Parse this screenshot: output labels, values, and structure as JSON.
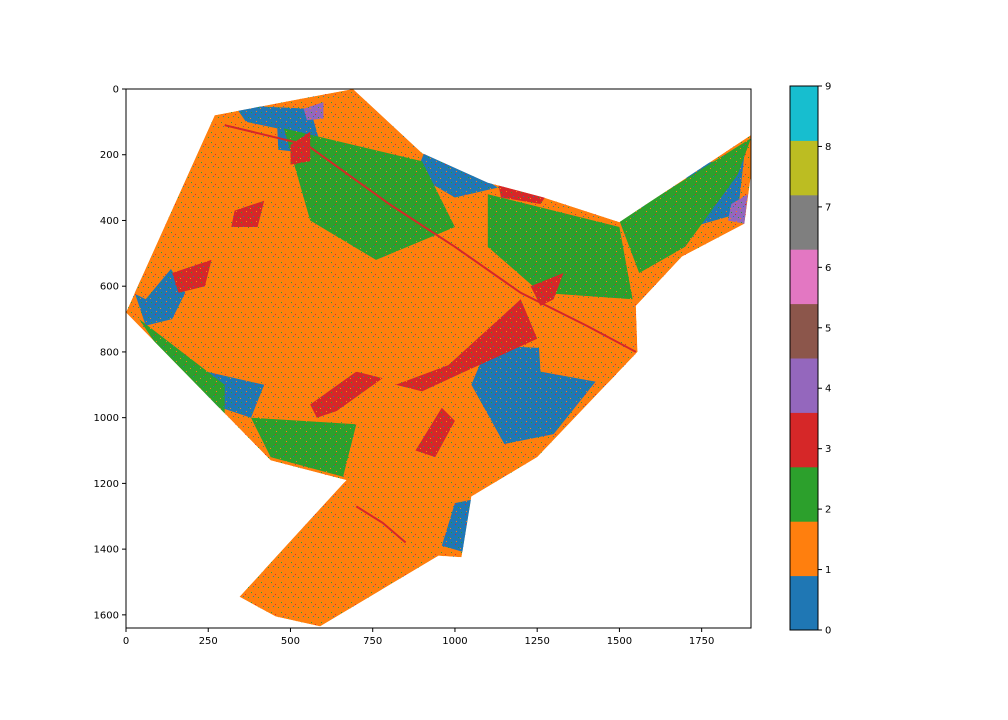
{
  "chart_data": [
    {
      "type": "heatmap",
      "title": "",
      "xlabel": "",
      "ylabel": "",
      "xlim": [
        0,
        1900
      ],
      "ylim": [
        1640,
        0
      ],
      "x_ticks": [
        "0",
        "250",
        "500",
        "750",
        "1000",
        "1250",
        "1500",
        "1750"
      ],
      "y_ticks": [
        "0",
        "200",
        "400",
        "600",
        "800",
        "1000",
        "1200",
        "1400",
        "1600"
      ],
      "x_tick_values": [
        0,
        250,
        500,
        750,
        1000,
        1250,
        1500,
        1750
      ],
      "y_tick_values": [
        0,
        200,
        400,
        600,
        800,
        1000,
        1200,
        1400,
        1600
      ],
      "grid": false,
      "description_region_boundary": [
        [
          690,
          0
        ],
        [
          900,
          195
        ],
        [
          1100,
          285
        ],
        [
          1270,
          330
        ],
        [
          1500,
          405
        ],
        [
          1900,
          140
        ],
        [
          1900,
          260
        ],
        [
          1880,
          410
        ],
        [
          1690,
          510
        ],
        [
          1550,
          660
        ],
        [
          1555,
          800
        ],
        [
          1250,
          1120
        ],
        [
          1050,
          1240
        ],
        [
          1020,
          1425
        ],
        [
          950,
          1420
        ],
        [
          590,
          1635
        ],
        [
          455,
          1605
        ],
        [
          345,
          1545
        ],
        [
          670,
          1190
        ],
        [
          440,
          1130
        ],
        [
          0,
          680
        ],
        [
          270,
          80
        ],
        [
          530,
          30
        ]
      ],
      "class_areas": [
        {
          "class": 0,
          "label": "0",
          "color": "#1f77b4",
          "regions": [
            [
              [
                20,
                600
              ],
              [
                120,
                520
              ],
              [
                180,
                620
              ],
              [
                140,
                700
              ],
              [
                60,
                720
              ]
            ],
            [
              [
                330,
                50
              ],
              [
                560,
                60
              ],
              [
                600,
                200
              ],
              [
                420,
                180
              ]
            ],
            [
              [
                920,
                160
              ],
              [
                1130,
                300
              ],
              [
                1000,
                330
              ],
              [
                880,
                260
              ]
            ],
            [
              [
                1100,
                780
              ],
              [
                1500,
                800
              ],
              [
                1300,
                1050
              ],
              [
                1150,
                1080
              ],
              [
                1050,
                900
              ]
            ],
            [
              [
                1000,
                1260
              ],
              [
                1050,
                1250
              ],
              [
                1030,
                1410
              ],
              [
                960,
                1390
              ]
            ],
            [
              [
                1700,
                240
              ],
              [
                1880,
                200
              ],
              [
                1860,
                380
              ],
              [
                1720,
                420
              ]
            ],
            [
              [
                200,
                850
              ],
              [
                420,
                900
              ],
              [
                380,
                1000
              ],
              [
                260,
                960
              ]
            ]
          ]
        },
        {
          "class": 1,
          "label": "1",
          "color": "#ff7f0e",
          "regions": [
            [
              [
                270,
                80
              ],
              [
                460,
                120
              ],
              [
                480,
                560
              ],
              [
                300,
                600
              ],
              [
                160,
                520
              ],
              [
                60,
                640
              ],
              [
                20,
                620
              ]
            ],
            [
              [
                300,
                640
              ],
              [
                700,
                560
              ],
              [
                900,
                840
              ],
              [
                720,
                1000
              ],
              [
                520,
                960
              ],
              [
                240,
                780
              ]
            ],
            [
              [
                400,
                1320
              ],
              [
                700,
                1180
              ],
              [
                900,
                1380
              ],
              [
                700,
                1560
              ],
              [
                520,
                1580
              ],
              [
                420,
                1470
              ]
            ],
            [
              [
                700,
                1000
              ],
              [
                980,
                880
              ],
              [
                1000,
                1100
              ],
              [
                800,
                1200
              ]
            ],
            [
              [
                1250,
                700
              ],
              [
                1540,
                720
              ],
              [
                1480,
                900
              ],
              [
                1260,
                860
              ]
            ]
          ]
        },
        {
          "class": 2,
          "label": "2",
          "color": "#2ca02c",
          "regions": [
            [
              [
                480,
                120
              ],
              [
                900,
                220
              ],
              [
                1000,
                420
              ],
              [
                760,
                520
              ],
              [
                560,
                400
              ]
            ],
            [
              [
                1100,
                320
              ],
              [
                1500,
                420
              ],
              [
                1540,
                640
              ],
              [
                1260,
                620
              ],
              [
                1100,
                480
              ]
            ],
            [
              [
                40,
                700
              ],
              [
                300,
                900
              ],
              [
                300,
                1000
              ],
              [
                120,
                820
              ]
            ],
            [
              [
                1500,
                400
              ],
              [
                1900,
                150
              ],
              [
                1860,
                260
              ],
              [
                1700,
                480
              ],
              [
                1560,
                560
              ]
            ],
            [
              [
                380,
                1000
              ],
              [
                700,
                1020
              ],
              [
                660,
                1180
              ],
              [
                440,
                1120
              ]
            ]
          ]
        },
        {
          "class": 3,
          "label": "3",
          "color": "#d62728",
          "regions": [
            [
              [
                820,
                900
              ],
              [
                980,
                840
              ],
              [
                1200,
                640
              ],
              [
                1250,
                760
              ],
              [
                1030,
                860
              ],
              [
                900,
                920
              ]
            ],
            [
              [
                560,
                960
              ],
              [
                700,
                860
              ],
              [
                780,
                880
              ],
              [
                640,
                980
              ],
              [
                580,
                1000
              ]
            ],
            [
              [
                880,
                1100
              ],
              [
                960,
                970
              ],
              [
                1000,
                1010
              ],
              [
                940,
                1120
              ]
            ],
            [
              [
                1230,
                600
              ],
              [
                1330,
                560
              ],
              [
                1300,
                640
              ],
              [
                1260,
                660
              ]
            ],
            [
              [
                500,
                170
              ],
              [
                560,
                130
              ],
              [
                560,
                220
              ],
              [
                500,
                230
              ]
            ],
            [
              [
                330,
                370
              ],
              [
                420,
                340
              ],
              [
                400,
                420
              ],
              [
                320,
                420
              ]
            ],
            [
              [
                140,
                560
              ],
              [
                260,
                520
              ],
              [
                240,
                600
              ],
              [
                160,
                620
              ]
            ],
            [
              [
                1130,
                280
              ],
              [
                1280,
                320
              ],
              [
                1260,
                350
              ],
              [
                1140,
                330
              ]
            ]
          ]
        },
        {
          "class": 4,
          "label": "4",
          "color": "#9467bd",
          "regions": [
            [
              [
                1840,
                350
              ],
              [
                1890,
                320
              ],
              [
                1880,
                410
              ],
              [
                1830,
                400
              ]
            ],
            [
              [
                540,
                60
              ],
              [
                600,
                40
              ],
              [
                600,
                90
              ],
              [
                550,
                95
              ]
            ]
          ]
        },
        {
          "class": 5,
          "label": "5",
          "color": "#8c564b",
          "regions": []
        },
        {
          "class": 6,
          "label": "6",
          "color": "#e377c2",
          "regions": []
        },
        {
          "class": 7,
          "label": "7",
          "color": "#7f7f7f",
          "regions": []
        },
        {
          "class": 8,
          "label": "8",
          "color": "#bcbd22",
          "regions": []
        }
      ],
      "linear_features": [
        {
          "class": 3,
          "color": "#d62728",
          "points": [
            [
              300,
              110
            ],
            [
              550,
              170
            ],
            [
              800,
              350
            ],
            [
              1000,
              480
            ],
            [
              1200,
              620
            ],
            [
              1400,
              720
            ],
            [
              1550,
              800
            ]
          ]
        },
        {
          "class": 3,
          "color": "#d62728",
          "points": [
            [
              700,
              1270
            ],
            [
              780,
              1320
            ],
            [
              850,
              1380
            ]
          ]
        }
      ]
    },
    {
      "type": "colorbar",
      "ticks": [
        "0",
        "1",
        "2",
        "3",
        "4",
        "5",
        "6",
        "7",
        "8",
        "9"
      ],
      "tick_values": [
        0,
        1,
        2,
        3,
        4,
        5,
        6,
        7,
        8,
        9
      ],
      "range": [
        0,
        9
      ],
      "colors": [
        "#1f77b4",
        "#ff7f0e",
        "#2ca02c",
        "#d62728",
        "#9467bd",
        "#8c564b",
        "#e377c2",
        "#7f7f7f",
        "#bcbd22",
        "#17becf"
      ]
    }
  ]
}
